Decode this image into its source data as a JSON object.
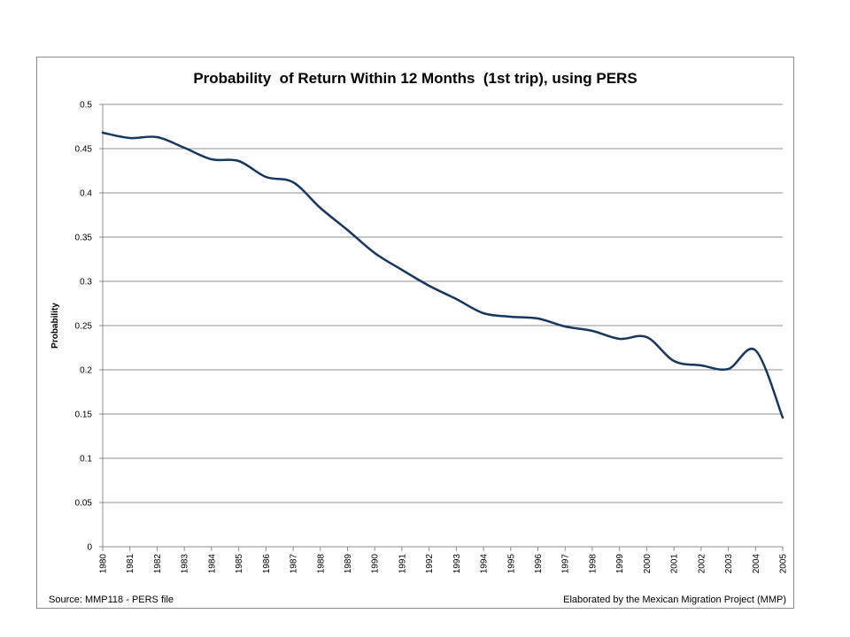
{
  "chart_data": {
    "type": "line",
    "title": "Probability  of Return Within 12 Months  (1st trip), using PERS",
    "xlabel": "",
    "ylabel": "Probability",
    "ylim": [
      0,
      0.5
    ],
    "yticks": [
      "0",
      "0.05",
      "0.1",
      "0.15",
      "0.2",
      "0.25",
      "0.3",
      "0.35",
      "0.4",
      "0.45",
      "0.5"
    ],
    "grid": true,
    "categories": [
      "1980",
      "1981",
      "1982",
      "1983",
      "1984",
      "1985",
      "1986",
      "1987",
      "1988",
      "1989",
      "1990",
      "1991",
      "1992",
      "1993",
      "1994",
      "1995",
      "1996",
      "1997",
      "1998",
      "1999",
      "2000",
      "2001",
      "2002",
      "2003",
      "2004",
      "2005"
    ],
    "series": [
      {
        "values": [
          0.468,
          0.462,
          0.463,
          0.451,
          0.438,
          0.436,
          0.418,
          0.412,
          0.383,
          0.358,
          0.332,
          0.313,
          0.295,
          0.28,
          0.264,
          0.26,
          0.258,
          0.249,
          0.244,
          0.235,
          0.237,
          0.21,
          0.205,
          0.201,
          0.222,
          0.146
        ],
        "color": "#17375e"
      }
    ],
    "source": "Source: MMP118 - PERS file",
    "credit": "Elaborated by the Mexican Migration Project (MMP)"
  }
}
